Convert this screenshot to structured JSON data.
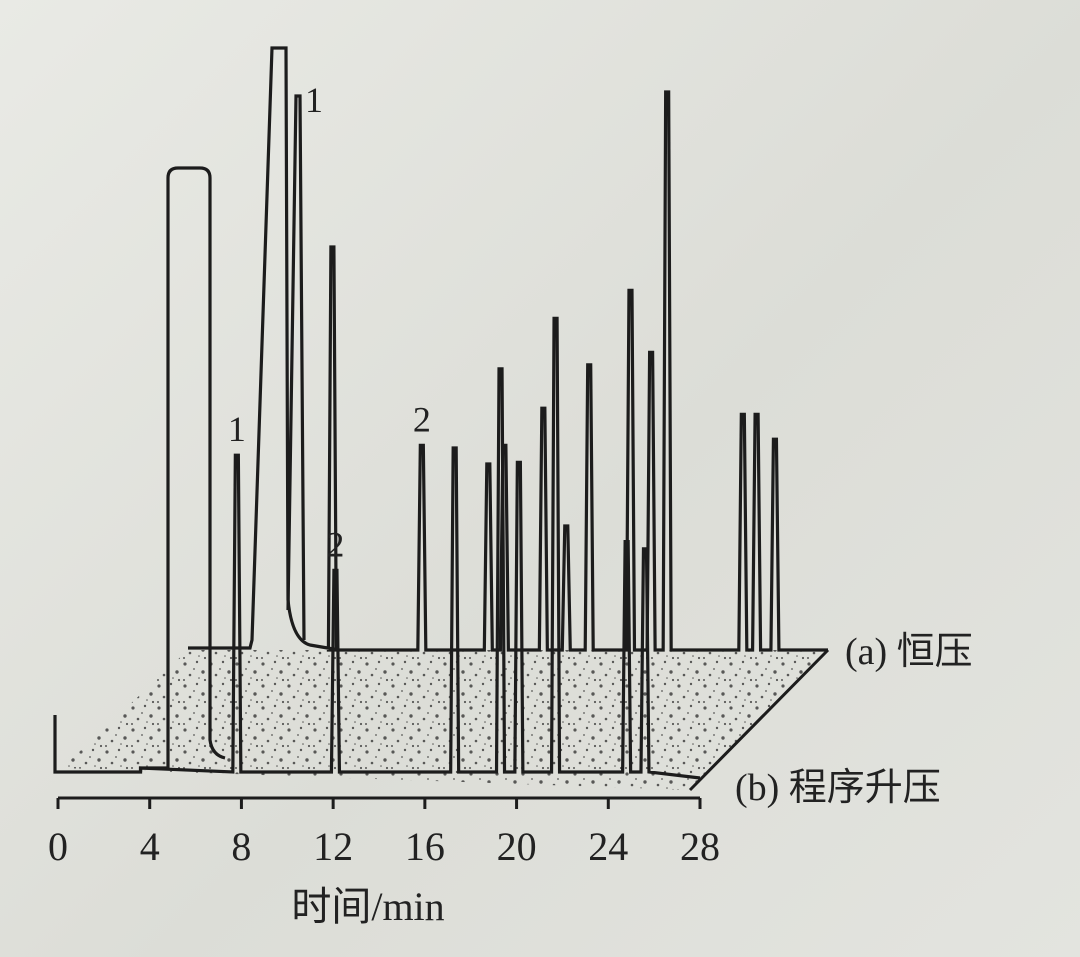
{
  "chart_data": {
    "type": "line",
    "xlabel": "时间/min",
    "x_ticks": [
      0,
      4,
      8,
      12,
      16,
      20,
      24,
      28
    ],
    "xlim": [
      0,
      28
    ],
    "series": [
      {
        "name": "(a) 恒压",
        "peaks": [
          {
            "x": 8.6,
            "h": 0.74
          },
          {
            "x": 9.7,
            "h": 0.65
          },
          {
            "x": 13.6,
            "h": 0.33
          },
          {
            "x": 16.5,
            "h": 0.3
          },
          {
            "x": 17.2,
            "h": 0.33
          },
          {
            "x": 18.9,
            "h": 0.39
          },
          {
            "x": 19.9,
            "h": 0.2
          },
          {
            "x": 20.9,
            "h": 0.46
          },
          {
            "x": 22.7,
            "h": 0.58
          },
          {
            "x": 23.6,
            "h": 0.48
          },
          {
            "x": 24.3,
            "h": 0.9
          },
          {
            "x": 27.6,
            "h": 0.38
          },
          {
            "x": 28.2,
            "h": 0.38
          },
          {
            "x": 29.0,
            "h": 0.34
          }
        ],
        "peak_labels": [
          {
            "x": 9.7,
            "text": "1"
          },
          {
            "x": 13.6,
            "text": "2"
          }
        ]
      },
      {
        "name": "(b) 程序升压",
        "peaks": [
          {
            "x": 7.8,
            "h": 0.44
          },
          {
            "x": 12.1,
            "h": 0.28
          },
          {
            "x": 17.3,
            "h": 0.45
          },
          {
            "x": 19.3,
            "h": 0.56
          },
          {
            "x": 20.1,
            "h": 0.43
          },
          {
            "x": 21.7,
            "h": 0.63
          },
          {
            "x": 24.8,
            "h": 0.32
          },
          {
            "x": 25.6,
            "h": 0.31
          }
        ],
        "peak_labels": [
          {
            "x": 7.8,
            "text": "1"
          },
          {
            "x": 12.1,
            "text": "2"
          }
        ]
      }
    ]
  }
}
